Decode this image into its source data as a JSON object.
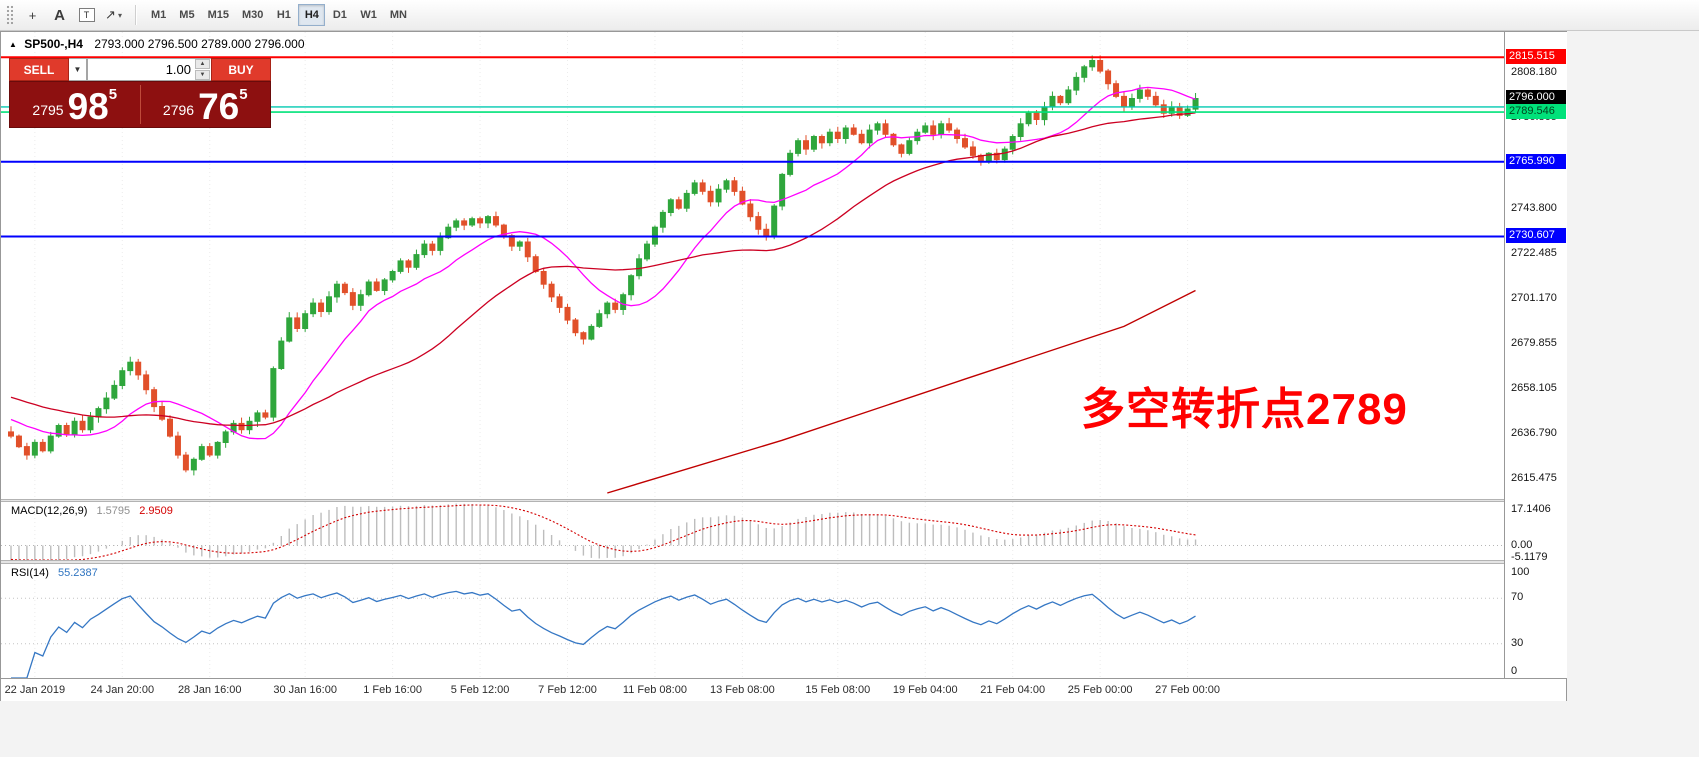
{
  "toolbar": {
    "icons": [
      {
        "name": "crosshair-icon",
        "glyph": "+"
      },
      {
        "name": "text-annotation-icon",
        "glyph": "A"
      },
      {
        "name": "text-label-icon",
        "glyph": "T"
      },
      {
        "name": "draw-arrow-icon",
        "glyph": "↗"
      }
    ],
    "caret_glyph": "▾",
    "timeframes": [
      "M1",
      "M5",
      "M15",
      "M30",
      "H1",
      "H4",
      "D1",
      "W1",
      "MN"
    ],
    "active_timeframe": "H4"
  },
  "symbol_header": {
    "collapse_arrow": "▲",
    "symbol": "SP500-,H4",
    "quote_line": "2793.000 2796.500 2789.000 2796.000"
  },
  "trade_panel": {
    "sell_label": "SELL",
    "buy_label": "BUY",
    "volume": "1.00",
    "caret": "▼",
    "spin_up": "▲",
    "spin_down": "▼",
    "sell_price": {
      "prefix": "2795",
      "big": "98",
      "sup": "5"
    },
    "buy_price": {
      "prefix": "2796",
      "big": "76",
      "sup": "5"
    },
    "colors": {
      "button_bg": "#e03a2b",
      "panel_bg": "#8d1010"
    }
  },
  "annotation": {
    "text": "多空转折点2789",
    "color": "#ff0000"
  },
  "price_axis": {
    "ticks": [
      2808.18,
      2786.865,
      2743.8,
      2722.485,
      2701.17,
      2679.855,
      2658.105,
      2636.79,
      2615.475
    ]
  },
  "chart": {
    "hlines": [
      {
        "price": 2815.515,
        "line_color": "#fe0000",
        "line_width": 2,
        "label_bg": "#fe0000",
        "label_color": "#ffffff"
      },
      {
        "price": 2796.0,
        "line_color": "",
        "line_width": 0,
        "label_bg": "#000000",
        "label_color": "#ffffff"
      },
      {
        "price": 2792.0,
        "line_color": "#00c9b0",
        "line_width": 1.4,
        "label_bg": "",
        "label_color": ""
      },
      {
        "price": 2789.546,
        "line_color": "#00e27a",
        "line_width": 1.6,
        "label_bg": "#00e27a",
        "label_color": "#00441f"
      },
      {
        "price": 2765.99,
        "line_color": "#0000fe",
        "line_width": 2,
        "label_bg": "#0000fe",
        "label_color": "#ffffff"
      },
      {
        "price": 2730.607,
        "line_color": "#0000fe",
        "line_width": 2,
        "label_bg": "#0000fe",
        "label_color": "#ffffff"
      }
    ]
  },
  "macd": {
    "title": "MACD(12,26,9)",
    "value_main": "1.5795",
    "value_signal": "2.9509",
    "axis_labels": [
      {
        "v": 17.1406,
        "text": "17.1406"
      },
      {
        "v": 0,
        "text": "0.00"
      },
      {
        "v": -5.1179,
        "text": "-5.1179"
      }
    ],
    "range": [
      -6,
      18
    ],
    "histogram_color": "#bdbdbd",
    "signal_color": "#d40000"
  },
  "rsi": {
    "title": "RSI(14)",
    "value": "55.2387",
    "levels": [
      100,
      70,
      30,
      0
    ],
    "line_color": "#3577c4",
    "range": [
      0,
      100
    ]
  },
  "time_axis": {
    "labels": [
      {
        "text": "22 Jan 2019",
        "index": 3
      },
      {
        "text": "24 Jan 20:00",
        "index": 14
      },
      {
        "text": "28 Jan 16:00",
        "index": 25
      },
      {
        "text": "30 Jan 16:00",
        "index": 37
      },
      {
        "text": "1 Feb 16:00",
        "index": 48
      },
      {
        "text": "5 Feb 12:00",
        "index": 59
      },
      {
        "text": "7 Feb 12:00",
        "index": 70
      },
      {
        "text": "11 Feb 08:00",
        "index": 81
      },
      {
        "text": "13 Feb 08:00",
        "index": 92
      },
      {
        "text": "15 Feb 08:00",
        "index": 104
      },
      {
        "text": "19 Feb 04:00",
        "index": 115
      },
      {
        "text": "21 Feb 04:00",
        "index": 126
      },
      {
        "text": "25 Feb 00:00",
        "index": 137
      },
      {
        "text": "27 Feb 00:00",
        "index": 148
      }
    ]
  },
  "chart_data": {
    "type": "candlestick",
    "symbol": "SP500-",
    "timeframe": "H4",
    "price_range": [
      2610,
      2818.5
    ],
    "first_open": 2638,
    "closes": [
      2636,
      2631,
      2627,
      2633,
      2629,
      2636,
      2641,
      2637,
      2643,
      2639,
      2645,
      2649,
      2654,
      2660,
      2667,
      2671,
      2665,
      2658,
      2650,
      2644,
      2636,
      2627,
      2620,
      2625,
      2631,
      2627,
      2633,
      2638,
      2642,
      2639,
      2643,
      2647,
      2645,
      2668,
      2681,
      2692,
      2687,
      2694,
      2699,
      2695,
      2702,
      2708,
      2704,
      2698,
      2703,
      2709,
      2705,
      2710,
      2714,
      2719,
      2716,
      2722,
      2727,
      2724,
      2730,
      2735,
      2738,
      2736,
      2739,
      2737,
      2740,
      2736,
      2731,
      2726,
      2728,
      2721,
      2714,
      2708,
      2702,
      2697,
      2691,
      2685,
      2682,
      2688,
      2694,
      2699,
      2696,
      2703,
      2712,
      2720,
      2727,
      2735,
      2742,
      2748,
      2744,
      2751,
      2756,
      2752,
      2747,
      2753,
      2757,
      2752,
      2746,
      2740,
      2734,
      2731,
      2745,
      2760,
      2770,
      2776,
      2772,
      2778,
      2775,
      2780,
      2777,
      2782,
      2779,
      2775,
      2781,
      2784,
      2779,
      2774,
      2770,
      2776,
      2780,
      2783,
      2779,
      2784,
      2781,
      2777,
      2773,
      2769,
      2766,
      2770,
      2767,
      2772,
      2778,
      2784,
      2789,
      2786,
      2792,
      2797,
      2794,
      2800,
      2806,
      2811,
      2814,
      2809,
      2803,
      2797,
      2792,
      2796,
      2800,
      2797,
      2793,
      2789,
      2792,
      2788,
      2791,
      2796
    ],
    "up_color": "#2fa63c",
    "down_color": "#e1502a",
    "ma_fast": {
      "period": 13,
      "color": "#ff00ff"
    },
    "ma_mid": {
      "period": 34,
      "color": "#cc0022"
    },
    "ma_long": {
      "color": "#c00000",
      "points": [
        [
          75,
          2609
        ],
        [
          97,
          2634
        ],
        [
          120,
          2663
        ],
        [
          140,
          2688
        ],
        [
          149,
          2705
        ]
      ]
    }
  }
}
